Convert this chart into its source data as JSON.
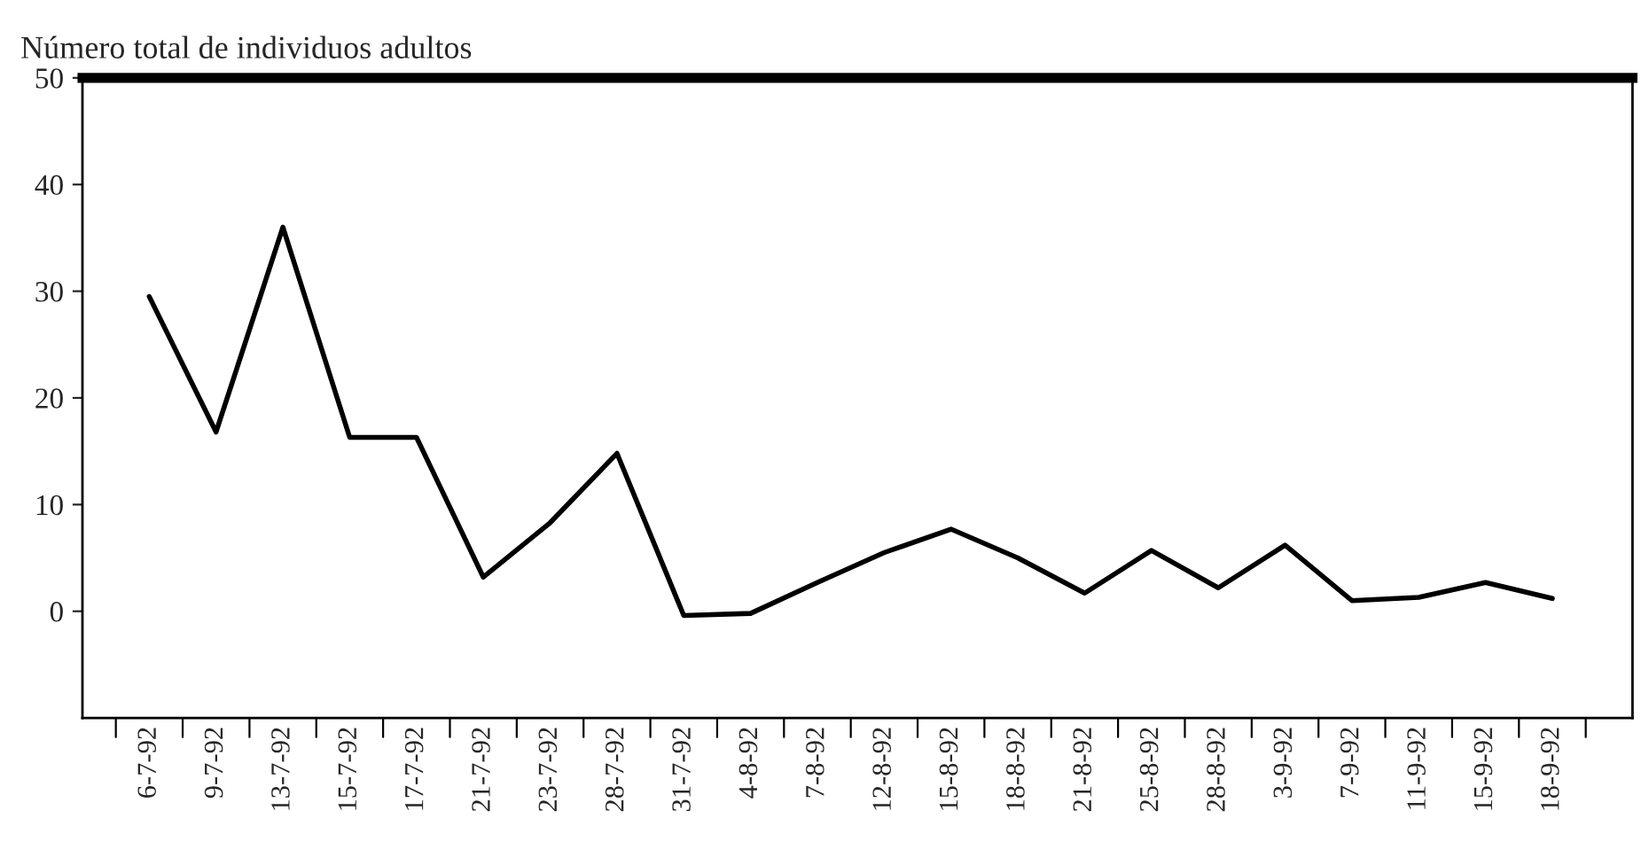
{
  "chart_data": {
    "type": "line",
    "ylabel": "Número total de individuos adultos",
    "categories": [
      "6-7-92",
      "9-7-92",
      "13-7-92",
      "15-7-92",
      "17-7-92",
      "21-7-92",
      "23-7-92",
      "28-7-92",
      "31-7-92",
      "4-8-92",
      "7-8-92",
      "12-8-92",
      "15-8-92",
      "18-8-92",
      "21-8-92",
      "25-8-92",
      "28-8-92",
      "3-9-92",
      "7-9-92",
      "11-9-92",
      "15-9-92",
      "18-9-92"
    ],
    "series": [
      {
        "color": "#000000",
        "values": [
          29.5,
          16.8,
          36,
          16.3,
          16.3,
          3.2,
          8.3,
          14.8,
          -0.4,
          -0.2,
          2.7,
          5.5,
          7.7,
          5,
          1.7,
          5.7,
          2.2,
          6.2,
          1,
          1.3,
          2.7,
          1.2
        ]
      }
    ],
    "ylim": [
      -10,
      50
    ],
    "yticks": [
      0,
      10,
      20,
      30,
      40,
      50
    ],
    "grid": false,
    "legend": false,
    "marker": "none",
    "line_style": "solid"
  }
}
